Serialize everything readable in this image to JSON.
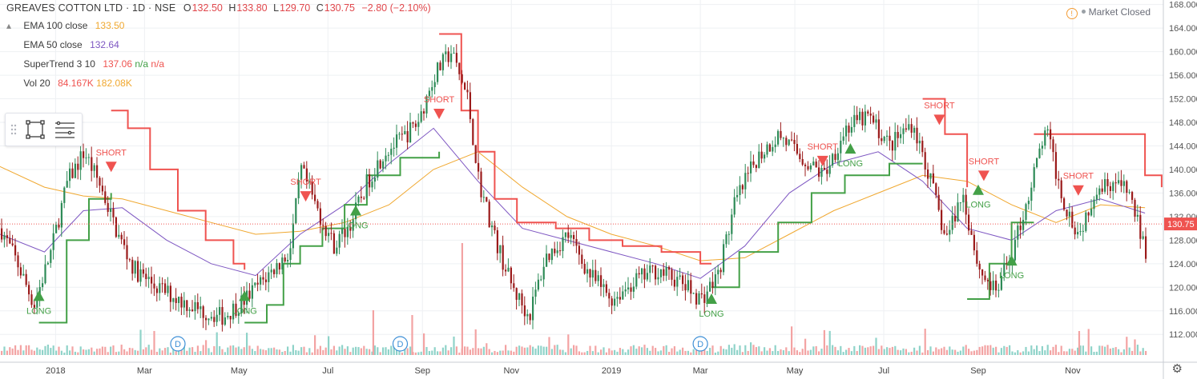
{
  "header": {
    "symbol": "GREAVES COTTON LTD · 1D · NSE",
    "ohlc": [
      {
        "key": "O",
        "value": "132.50"
      },
      {
        "key": "H",
        "value": "133.80"
      },
      {
        "key": "L",
        "value": "129.70"
      },
      {
        "key": "C",
        "value": "130.75"
      }
    ],
    "change": "−2.80 (−2.10%)"
  },
  "indicators": [
    {
      "label": "EMA 100 close",
      "values": [
        {
          "text": "133.50",
          "color": "#f0a830"
        }
      ]
    },
    {
      "label": "EMA 50 close",
      "values": [
        {
          "text": "132.64",
          "color": "#7e57c2"
        }
      ]
    },
    {
      "label": "SuperTrend 3 10",
      "values": [
        {
          "text": "137.06",
          "color": "#ef5350"
        },
        {
          "text": "n/a",
          "color": "#43a047"
        },
        {
          "text": "n/a",
          "color": "#ef5350"
        }
      ]
    },
    {
      "label": "Vol 20",
      "values": [
        {
          "text": "84.167K",
          "color": "#ef5350"
        },
        {
          "text": "182.08K",
          "color": "#f0a830"
        }
      ]
    }
  ],
  "status": {
    "text": "Market Closed"
  },
  "chart_data": {
    "type": "candlestick",
    "price_axis": {
      "ticks": [
        112,
        116,
        120,
        124,
        128,
        132,
        136,
        140,
        144,
        148,
        152,
        156,
        160,
        164,
        168
      ],
      "ylim": [
        108.5,
        168.5
      ]
    },
    "time_axis": {
      "labels": [
        "2018",
        "Mar",
        "May",
        "Jul",
        "Sep",
        "Nov",
        "2019",
        "Mar",
        "May",
        "Jul",
        "Sep",
        "Nov"
      ]
    },
    "last_price": {
      "value": 130.75,
      "label": "130.75",
      "color": "#ef5350"
    },
    "ema_series": [
      {
        "name": "EMA 100 close",
        "color": "#f0a830",
        "points": [
          [
            2017.9,
            140.5
          ],
          [
            2017.98,
            137.0
          ],
          [
            2018.05,
            135.5
          ],
          [
            2018.12,
            135.0
          ],
          [
            2018.2,
            133.0
          ],
          [
            2018.28,
            131.0
          ],
          [
            2018.36,
            129.0
          ],
          [
            2018.44,
            129.5
          ],
          [
            2018.52,
            131.0
          ],
          [
            2018.6,
            134.0
          ],
          [
            2018.68,
            140.0
          ],
          [
            2018.76,
            143.0
          ],
          [
            2018.84,
            137.0
          ],
          [
            2018.92,
            132.0
          ],
          [
            2019.0,
            129.0
          ],
          [
            2019.08,
            127.0
          ],
          [
            2019.16,
            124.5
          ],
          [
            2019.24,
            125.0
          ],
          [
            2019.32,
            129.0
          ],
          [
            2019.4,
            133.0
          ],
          [
            2019.48,
            136.0
          ],
          [
            2019.56,
            139.0
          ],
          [
            2019.64,
            138.0
          ],
          [
            2019.72,
            134.0
          ],
          [
            2019.8,
            131.0
          ],
          [
            2019.88,
            134.0
          ],
          [
            2019.96,
            133.5
          ]
        ]
      },
      {
        "name": "EMA 50 close",
        "color": "#7e57c2",
        "points": [
          [
            2017.9,
            129.0
          ],
          [
            2017.98,
            126.0
          ],
          [
            2018.05,
            133.0
          ],
          [
            2018.12,
            133.5
          ],
          [
            2018.2,
            128.0
          ],
          [
            2018.28,
            124.0
          ],
          [
            2018.36,
            122.0
          ],
          [
            2018.44,
            129.0
          ],
          [
            2018.52,
            134.0
          ],
          [
            2018.6,
            141.0
          ],
          [
            2018.68,
            147.0
          ],
          [
            2018.76,
            138.0
          ],
          [
            2018.84,
            130.0
          ],
          [
            2018.92,
            128.0
          ],
          [
            2019.0,
            126.0
          ],
          [
            2019.08,
            124.0
          ],
          [
            2019.16,
            121.5
          ],
          [
            2019.24,
            127.0
          ],
          [
            2019.32,
            136.0
          ],
          [
            2019.4,
            141.0
          ],
          [
            2019.48,
            143.0
          ],
          [
            2019.56,
            138.0
          ],
          [
            2019.64,
            130.0
          ],
          [
            2019.72,
            128.0
          ],
          [
            2019.8,
            133.0
          ],
          [
            2019.88,
            135.0
          ],
          [
            2019.96,
            132.6
          ]
        ]
      }
    ],
    "supertrend_segments": [
      {
        "color": "#43a047",
        "points": [
          [
            2017.97,
            114
          ],
          [
            2018.02,
            128
          ],
          [
            2018.06,
            135
          ],
          [
            2018.1,
            136
          ]
        ]
      },
      {
        "color": "#ef5350",
        "points": [
          [
            2018.1,
            150
          ],
          [
            2018.13,
            147
          ],
          [
            2018.17,
            140
          ],
          [
            2018.22,
            133
          ],
          [
            2018.27,
            128
          ],
          [
            2018.32,
            124
          ],
          [
            2018.34,
            123
          ]
        ]
      },
      {
        "color": "#43a047",
        "points": [
          [
            2018.34,
            114
          ],
          [
            2018.38,
            117
          ],
          [
            2018.41,
            124
          ],
          [
            2018.44,
            127
          ],
          [
            2018.48,
            130
          ],
          [
            2018.52,
            134
          ],
          [
            2018.56,
            139
          ],
          [
            2018.62,
            142
          ],
          [
            2018.69,
            143
          ]
        ]
      },
      {
        "color": "#ef5350",
        "points": [
          [
            2018.69,
            163
          ],
          [
            2018.73,
            150
          ],
          [
            2018.76,
            143
          ],
          [
            2018.79,
            135
          ],
          [
            2018.83,
            131
          ],
          [
            2018.9,
            130
          ],
          [
            2018.96,
            128
          ],
          [
            2019.02,
            127
          ],
          [
            2019.09,
            126
          ],
          [
            2019.16,
            124
          ],
          [
            2019.18,
            124
          ]
        ]
      },
      {
        "color": "#43a047",
        "points": [
          [
            2019.18,
            120
          ],
          [
            2019.23,
            126
          ],
          [
            2019.3,
            131
          ],
          [
            2019.36,
            136
          ],
          [
            2019.42,
            139
          ],
          [
            2019.5,
            141
          ],
          [
            2019.56,
            141
          ]
        ]
      },
      {
        "color": "#ef5350",
        "points": [
          [
            2019.56,
            152
          ],
          [
            2019.6,
            146
          ],
          [
            2019.64,
            137
          ]
        ]
      },
      {
        "color": "#43a047",
        "points": [
          [
            2019.64,
            118
          ],
          [
            2019.68,
            124
          ],
          [
            2019.72,
            131
          ],
          [
            2019.76,
            131
          ]
        ]
      },
      {
        "color": "#ef5350",
        "points": [
          [
            2019.76,
            146
          ],
          [
            2019.84,
            146
          ],
          [
            2019.92,
            146
          ],
          [
            2019.96,
            139
          ],
          [
            2019.99,
            137
          ]
        ]
      }
    ],
    "signals": [
      {
        "type": "LONG",
        "x": 2017.97,
        "price": 118.5
      },
      {
        "type": "SHORT",
        "x": 2018.1,
        "price": 140.5
      },
      {
        "type": "LONG",
        "x": 2018.34,
        "price": 118.5
      },
      {
        "type": "SHORT",
        "x": 2018.45,
        "price": 135.5
      },
      {
        "type": "LONG",
        "x": 2018.54,
        "price": 133.0
      },
      {
        "type": "SHORT",
        "x": 2018.69,
        "price": 149.5
      },
      {
        "type": "LONG",
        "x": 2019.18,
        "price": 118.0
      },
      {
        "type": "SHORT",
        "x": 2019.38,
        "price": 141.5
      },
      {
        "type": "LONG",
        "x": 2019.43,
        "price": 143.5
      },
      {
        "type": "SHORT",
        "x": 2019.59,
        "price": 148.5
      },
      {
        "type": "LONG",
        "x": 2019.66,
        "price": 136.5
      },
      {
        "type": "SHORT",
        "x": 2019.67,
        "price": 139.0
      },
      {
        "type": "LONG",
        "x": 2019.72,
        "price": 124.5
      },
      {
        "type": "SHORT",
        "x": 2019.84,
        "price": 136.5
      }
    ],
    "dividend_markers": [
      {
        "x": 2018.22,
        "label": "D"
      },
      {
        "x": 2018.62,
        "label": "D"
      },
      {
        "x": 2019.16,
        "label": "D"
      }
    ],
    "trend_path": [
      [
        2017.9,
        130
      ],
      [
        2017.93,
        124
      ],
      [
        2017.96,
        117
      ],
      [
        2017.99,
        126
      ],
      [
        2018.02,
        138
      ],
      [
        2018.05,
        143
      ],
      [
        2018.08,
        137
      ],
      [
        2018.11,
        129
      ],
      [
        2018.14,
        123
      ],
      [
        2018.18,
        120
      ],
      [
        2018.22,
        118
      ],
      [
        2018.26,
        116
      ],
      [
        2018.3,
        115
      ],
      [
        2018.34,
        118
      ],
      [
        2018.38,
        122
      ],
      [
        2018.42,
        126
      ],
      [
        2018.44,
        140
      ],
      [
        2018.47,
        133
      ],
      [
        2018.5,
        127
      ],
      [
        2018.53,
        131
      ],
      [
        2018.56,
        138
      ],
      [
        2018.59,
        143
      ],
      [
        2018.62,
        145
      ],
      [
        2018.65,
        148
      ],
      [
        2018.68,
        156
      ],
      [
        2018.71,
        160
      ],
      [
        2018.74,
        152
      ],
      [
        2018.76,
        138
      ],
      [
        2018.79,
        128
      ],
      [
        2018.82,
        120
      ],
      [
        2018.85,
        115
      ],
      [
        2018.88,
        125
      ],
      [
        2018.92,
        129
      ],
      [
        2018.96,
        122
      ],
      [
        2019.0,
        118
      ],
      [
        2019.04,
        121
      ],
      [
        2019.08,
        123
      ],
      [
        2019.12,
        121
      ],
      [
        2019.16,
        118
      ],
      [
        2019.19,
        122
      ],
      [
        2019.22,
        134
      ],
      [
        2019.26,
        142
      ],
      [
        2019.3,
        146
      ],
      [
        2019.34,
        142
      ],
      [
        2019.38,
        139
      ],
      [
        2019.42,
        147
      ],
      [
        2019.46,
        149
      ],
      [
        2019.5,
        144
      ],
      [
        2019.54,
        148
      ],
      [
        2019.57,
        139
      ],
      [
        2019.6,
        128
      ],
      [
        2019.63,
        136
      ],
      [
        2019.66,
        123
      ],
      [
        2019.69,
        119
      ],
      [
        2019.72,
        126
      ],
      [
        2019.75,
        136
      ],
      [
        2019.78,
        147
      ],
      [
        2019.81,
        135
      ],
      [
        2019.84,
        129
      ],
      [
        2019.87,
        137
      ],
      [
        2019.9,
        138
      ],
      [
        2019.93,
        136
      ],
      [
        2019.96,
        126
      ],
      [
        2019.99,
        131
      ]
    ],
    "volume_spikes": [
      [
        2018.73,
        140
      ],
      [
        2019.84,
        30
      ],
      [
        2018.57,
        56
      ],
      [
        2018.64,
        50
      ]
    ]
  }
}
